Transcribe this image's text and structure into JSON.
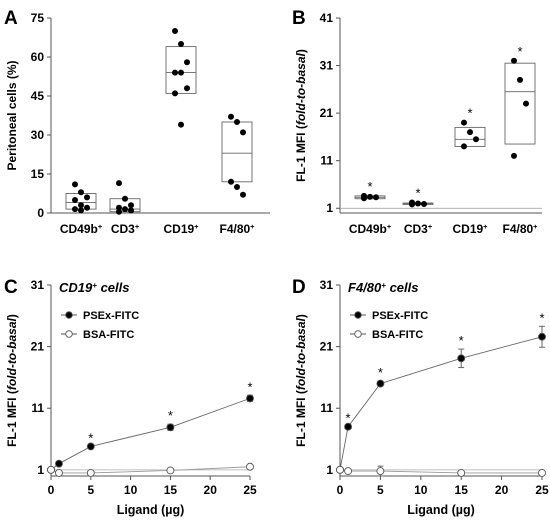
{
  "chart_data": [
    {
      "panel": "A",
      "type": "box",
      "ylabel": "Peritoneal cells (%)",
      "yticks": [
        0,
        15,
        30,
        45,
        60,
        75
      ],
      "ylim": [
        0,
        75
      ],
      "categories": [
        {
          "base": "CD49b",
          "sup": "+"
        },
        {
          "base": "CD3",
          "sup": "+"
        },
        {
          "base": "CD19",
          "sup": "+"
        },
        {
          "base": "F4/80",
          "sup": "+"
        }
      ],
      "boxes": [
        {
          "q1": 1.5,
          "median": 4,
          "q3": 7.5,
          "points": [
            11,
            8,
            6,
            5,
            3,
            2,
            1.5,
            1
          ]
        },
        {
          "q1": 0.5,
          "median": 1.5,
          "q3": 5.5,
          "points": [
            11.5,
            5.5,
            3,
            2,
            1.5,
            1,
            0.5
          ]
        },
        {
          "q1": 46,
          "median": 54,
          "q3": 64,
          "points": [
            70,
            65,
            58,
            54,
            54,
            48,
            46,
            34
          ]
        },
        {
          "q1": 12,
          "median": 23,
          "q3": 35,
          "points": [
            37,
            35,
            31,
            12,
            10,
            7
          ]
        }
      ]
    },
    {
      "panel": "B",
      "type": "box",
      "ylabel": [
        "FL-1 MFI (",
        "fold-to-basal",
        ")"
      ],
      "yticks": [
        1,
        11,
        21,
        31,
        41
      ],
      "ylim": [
        0,
        41
      ],
      "categories": [
        {
          "base": "CD49b",
          "sup": "+"
        },
        {
          "base": "CD3",
          "sup": "+"
        },
        {
          "base": "CD19",
          "sup": "+"
        },
        {
          "base": "F4/80",
          "sup": "+"
        }
      ],
      "significance": [
        "*",
        "*",
        "*",
        "*"
      ],
      "boxes": [
        {
          "q1": 3.0,
          "median": 3.3,
          "q3": 3.6,
          "points": [
            3.6,
            3.4,
            3.3,
            3.1
          ]
        },
        {
          "q1": 1.8,
          "median": 1.9,
          "q3": 2.1,
          "points": [
            2.2,
            2.0,
            1.9,
            1.8
          ]
        },
        {
          "q1": 14,
          "median": 15.5,
          "q3": 18,
          "points": [
            19,
            17,
            15.5,
            14
          ]
        },
        {
          "q1": 14.5,
          "median": 25.5,
          "q3": 31.5,
          "points": [
            32,
            28,
            23,
            12
          ]
        }
      ]
    },
    {
      "panel": "C",
      "type": "line",
      "title": {
        "base": "CD19",
        "sup": "+",
        "rest": " cells"
      },
      "xlabel": "Ligand (µg)",
      "ylabel": [
        "FL-1 MFI (",
        "fold-to-basal",
        ")"
      ],
      "xticks": [
        0,
        5,
        10,
        15,
        20,
        25
      ],
      "yticks": [
        1,
        11,
        21,
        31
      ],
      "xlim": [
        0,
        25
      ],
      "ylim": [
        0,
        31
      ],
      "series": [
        {
          "name": "PSEx-FITC",
          "filled": true,
          "x": [
            0,
            1,
            5,
            15,
            25
          ],
          "y": [
            1,
            2,
            4.8,
            7.9,
            12.6
          ],
          "err": [
            0,
            0,
            0,
            0.5,
            0.5
          ],
          "sig": [
            "",
            "",
            "*",
            "*",
            "*"
          ]
        },
        {
          "name": "BSA-FITC",
          "filled": false,
          "x": [
            0,
            1,
            5,
            15,
            25
          ],
          "y": [
            1,
            0.5,
            0.5,
            0.9,
            1.5
          ],
          "err": [
            0,
            0,
            0,
            0,
            0
          ],
          "sig": [
            "",
            "",
            "",
            "",
            ""
          ]
        }
      ]
    },
    {
      "panel": "D",
      "type": "line",
      "title": {
        "base": "F4/80",
        "sup": "+",
        "rest": " cells"
      },
      "xlabel": "Ligand (µg)",
      "ylabel": [
        "FL-1 MFI (",
        "fold-to-basal",
        ")"
      ],
      "xticks": [
        0,
        5,
        10,
        15,
        20,
        25
      ],
      "yticks": [
        1,
        11,
        21,
        31
      ],
      "xlim": [
        0,
        25
      ],
      "ylim": [
        0,
        31
      ],
      "series": [
        {
          "name": "PSEx-FITC",
          "filled": true,
          "x": [
            0,
            1,
            5,
            15,
            25
          ],
          "y": [
            1,
            8,
            15,
            19.1,
            22.6
          ],
          "err": [
            0,
            0,
            0.4,
            1.5,
            1.7
          ],
          "sig": [
            "",
            "*",
            "*",
            "*",
            "*"
          ]
        },
        {
          "name": "BSA-FITC",
          "filled": false,
          "x": [
            0,
            1,
            5,
            15,
            25
          ],
          "y": [
            1,
            0.8,
            0.8,
            0.5,
            0.5
          ],
          "err": [
            0,
            0,
            0.8,
            0,
            0
          ],
          "sig": [
            "",
            "",
            "",
            "",
            ""
          ]
        }
      ]
    }
  ]
}
